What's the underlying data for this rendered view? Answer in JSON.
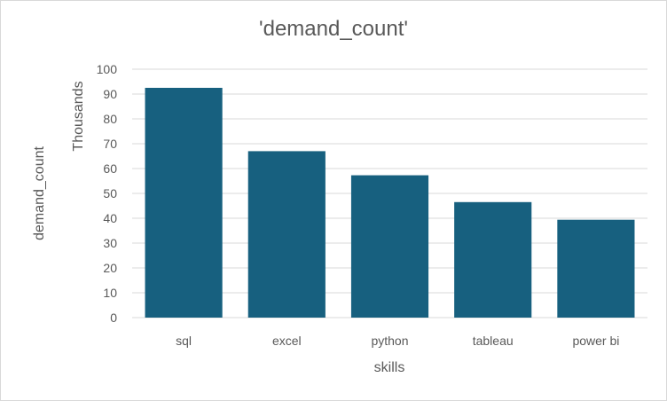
{
  "chart_data": {
    "type": "bar",
    "title": "'demand_count'",
    "categories": [
      "sql",
      "excel",
      "python",
      "tableau",
      "power bi"
    ],
    "series": [
      {
        "values": [
          92.5,
          67,
          57.3,
          46.5,
          39.4
        ]
      }
    ],
    "xlabel": "skills",
    "ylabel": "demand_count",
    "y_units_label": "Thousands",
    "ylim": [
      0,
      100
    ],
    "yticks": [
      0,
      10,
      20,
      30,
      40,
      50,
      60,
      70,
      80,
      90,
      100
    ],
    "grid": true,
    "legend": "none",
    "bar_color": "#17607f",
    "grid_color": "#d9d9d9",
    "text_color": "#595959"
  }
}
